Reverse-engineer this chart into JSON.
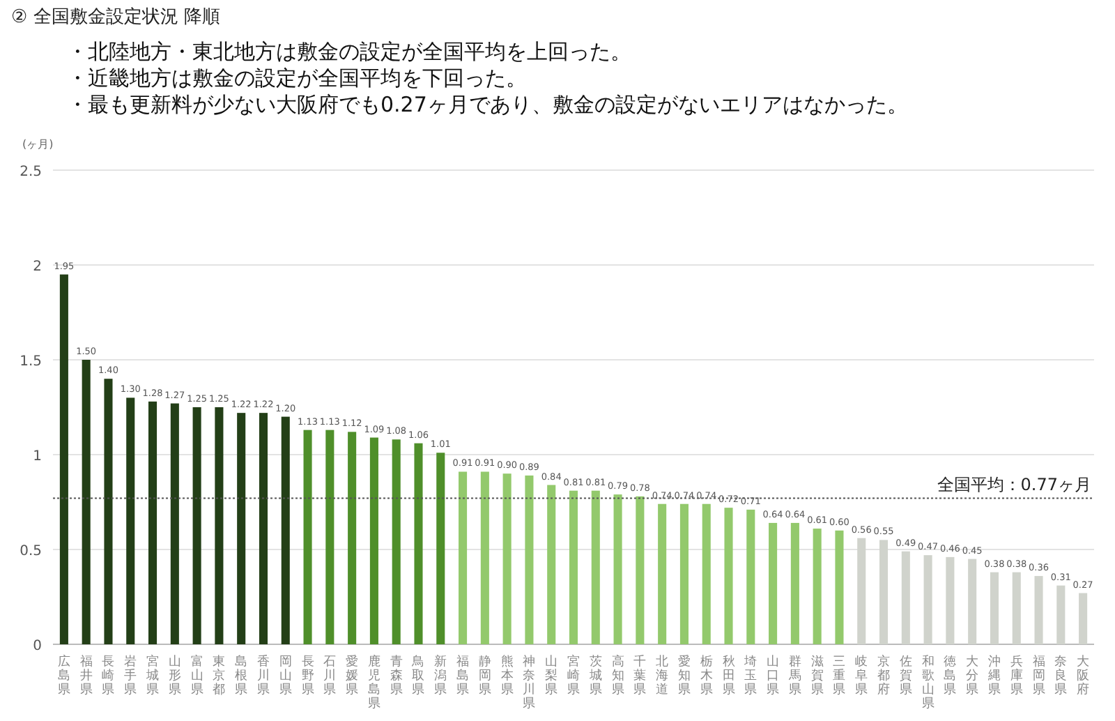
{
  "chart_data": {
    "type": "bar",
    "title": "② 全国敷金設定状況 降順",
    "annotations": [
      "・北陸地方・東北地方は敷金の設定が全国平均を上回った。",
      "・近畿地方は敷金の設定が全国平均を下回った。",
      "・最も更新料が少ない大阪府でも0.27ヶ月であり、敷金の設定がないエリアはなかった。"
    ],
    "ylabel": "(ヶ月)",
    "categories": [
      "広島県",
      "福井県",
      "長崎県",
      "岩手県",
      "宮城県",
      "山形県",
      "富山県",
      "東京都",
      "島根県",
      "香川県",
      "岡山県",
      "長野県",
      "石川県",
      "愛媛県",
      "鹿児島県",
      "青森県",
      "鳥取県",
      "新潟県",
      "福島県",
      "静岡県",
      "熊本県",
      "神奈川県",
      "山梨県",
      "宮崎県",
      "茨城県",
      "高知県",
      "千葉県",
      "北海道",
      "愛知県",
      "栃木県",
      "秋田県",
      "埼玉県",
      "山口県",
      "群馬県",
      "滋賀県",
      "三重県",
      "岐阜県",
      "京都府",
      "佐賀県",
      "和歌山県",
      "徳島県",
      "大分県",
      "沖縄県",
      "兵庫県",
      "福岡県",
      "奈良県",
      "大阪府"
    ],
    "values": [
      1.95,
      1.5,
      1.4,
      1.3,
      1.28,
      1.27,
      1.25,
      1.25,
      1.22,
      1.22,
      1.2,
      1.13,
      1.13,
      1.12,
      1.09,
      1.08,
      1.06,
      1.01,
      0.91,
      0.91,
      0.9,
      0.89,
      0.84,
      0.81,
      0.81,
      0.79,
      0.78,
      0.74,
      0.74,
      0.74,
      0.72,
      0.71,
      0.64,
      0.64,
      0.61,
      0.6,
      0.56,
      0.55,
      0.49,
      0.47,
      0.46,
      0.45,
      0.38,
      0.38,
      0.36,
      0.31,
      0.27
    ],
    "value_labels": [
      "1.95",
      "1.50",
      "1.40",
      "1.30",
      "1.28",
      "1.27",
      "1.25",
      "1.25",
      "1.22",
      "1.22",
      "1.20",
      "1.13",
      "1.13",
      "1.12",
      "1.09",
      "1.08",
      "1.06",
      "1.01",
      "0.91",
      "0.91",
      "0.90",
      "0.89",
      "0.84",
      "0.81",
      "0.81",
      "0.79",
      "0.78",
      "0.74",
      "0.74",
      "0.74",
      "0.72",
      "0.71",
      "0.64",
      "0.64",
      "0.61",
      "0.60",
      "0.56",
      "0.55",
      "0.49",
      "0.47",
      "0.46",
      "0.45",
      "0.38",
      "0.38",
      "0.36",
      "0.31",
      "0.27"
    ],
    "colors": [
      "#233f17",
      "#233f17",
      "#233f17",
      "#233f17",
      "#233f17",
      "#233f17",
      "#233f17",
      "#233f17",
      "#233f17",
      "#233f17",
      "#233f17",
      "#4f8f2a",
      "#4f8f2a",
      "#4f8f2a",
      "#4f8f2a",
      "#4f8f2a",
      "#4f8f2a",
      "#4f8f2a",
      "#93c96c",
      "#93c96c",
      "#93c96c",
      "#93c96c",
      "#93c96c",
      "#93c96c",
      "#93c96c",
      "#93c96c",
      "#93c96c",
      "#93c96c",
      "#93c96c",
      "#93c96c",
      "#93c96c",
      "#93c96c",
      "#93c96c",
      "#93c96c",
      "#93c96c",
      "#93c96c",
      "#d0d3cc",
      "#d0d3cc",
      "#d0d3cc",
      "#d0d3cc",
      "#d0d3cc",
      "#d0d3cc",
      "#d0d3cc",
      "#d0d3cc",
      "#d0d3cc",
      "#d0d3cc",
      "#d0d3cc"
    ],
    "ylim": [
      0,
      2.5
    ],
    "yticks": [
      0,
      0.5,
      1,
      1.5,
      2,
      2.5
    ],
    "grid": "y",
    "ref_lines": [
      {
        "axis": "y",
        "value": 0.77,
        "label": "全国平均：0.77ヶ月",
        "color": "#555555",
        "line_style": "dotted"
      }
    ]
  }
}
